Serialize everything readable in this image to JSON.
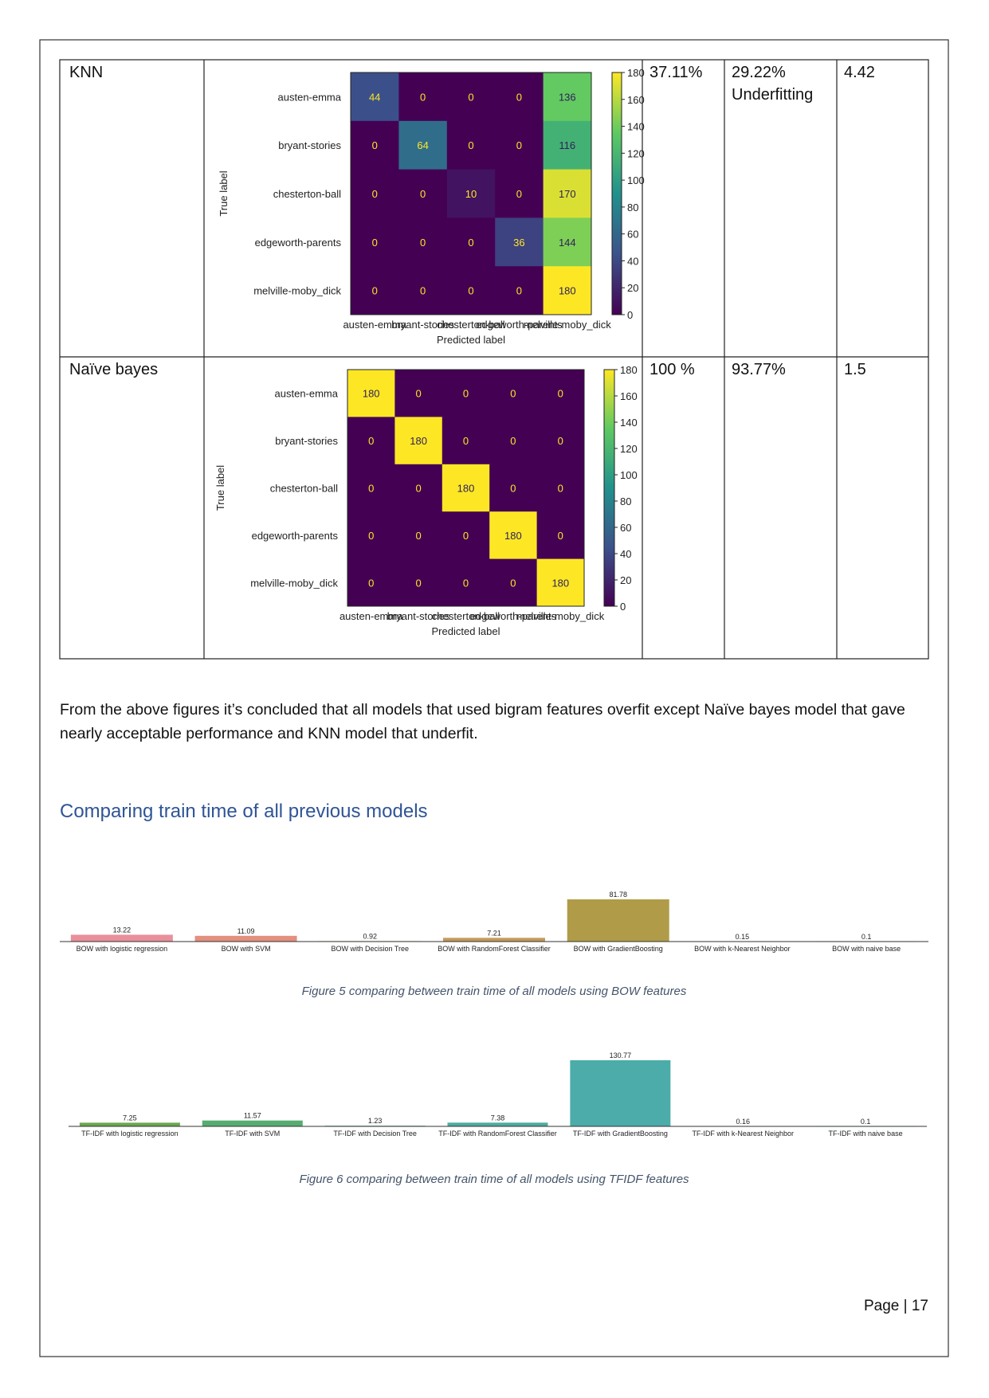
{
  "table": {
    "rows": [
      {
        "model": "KNN",
        "cells": [
          [
            "37.11%"
          ],
          [
            "29.22%",
            "Underfitting"
          ],
          [
            "4.42"
          ]
        ]
      },
      {
        "model": "Naïve bayes",
        "cells": [
          [
            "100 %"
          ],
          [
            "93.77%"
          ],
          [
            "1.5"
          ]
        ]
      }
    ]
  },
  "paragraph": "From the above figures it’s concluded that all models that used bigram features overfit except Naïve bayes model that gave nearly acceptable performance and KNN model that underfit.",
  "heading": "Comparing train time of all previous models",
  "captions": [
    "Figure 5 comparing between train time of all models using BOW features",
    "Figure 6 comparing between train time of all models using TFIDF features"
  ],
  "footer": "Page | 17",
  "chart_data": [
    {
      "type": "heatmap",
      "x_label": "Predicted label",
      "y_label": "True label",
      "categories": [
        "austen-emma",
        "bryant-stories",
        "chesterton-ball",
        "edgeworth-parents",
        "melville-moby_dick"
      ],
      "values": [
        [
          44,
          0,
          0,
          0,
          136
        ],
        [
          0,
          64,
          0,
          0,
          116
        ],
        [
          0,
          0,
          10,
          0,
          170
        ],
        [
          0,
          0,
          0,
          36,
          144
        ],
        [
          0,
          0,
          0,
          0,
          180
        ]
      ],
      "clim": [
        0,
        180
      ],
      "colorbar_ticks": [
        0,
        20,
        40,
        60,
        80,
        100,
        120,
        140,
        160,
        180
      ],
      "colormap": "viridis"
    },
    {
      "type": "heatmap",
      "x_label": "Predicted label",
      "y_label": "True label",
      "categories": [
        "austen-emma",
        "bryant-stories",
        "chesterton-ball",
        "edgeworth-parents",
        "melville-moby_dick"
      ],
      "values": [
        [
          180,
          0,
          0,
          0,
          0
        ],
        [
          0,
          180,
          0,
          0,
          0
        ],
        [
          0,
          0,
          180,
          0,
          0
        ],
        [
          0,
          0,
          0,
          180,
          0
        ],
        [
          0,
          0,
          0,
          0,
          180
        ]
      ],
      "clim": [
        0,
        180
      ],
      "colorbar_ticks": [
        0,
        20,
        40,
        60,
        80,
        100,
        120,
        140,
        160,
        180
      ],
      "colormap": "viridis"
    },
    {
      "type": "bar",
      "categories": [
        "BOW with logistic regression",
        "BOW with SVM",
        "BOW with Decision Tree",
        "BOW with RandomForest Classifier",
        "BOW with GradientBoosting",
        "BOW with k-Nearest Neighbor",
        "BOW with naive base"
      ],
      "values": [
        13.22,
        11.09,
        0.92,
        7.21,
        81.78,
        0.15,
        0.1
      ],
      "colors": [
        "#e98f9c",
        "#e3907f",
        "#d49a6a",
        "#c49a5a",
        "#b09c48",
        "#9ea045",
        "#8fa244"
      ]
    },
    {
      "type": "bar",
      "categories": [
        "TF-IDF with logistic regression",
        "TF-IDF with SVM",
        "TF-IDF with Decision Tree",
        "TF-IDF with RandomForest Classifier",
        "TF-IDF with GradientBoosting",
        "TF-IDF with k-Nearest Neighbor",
        "TF-IDF with naive base"
      ],
      "values": [
        7.25,
        11.57,
        1.23,
        7.38,
        130.77,
        0.16,
        0.1
      ],
      "colors": [
        "#6aa84f",
        "#56ad72",
        "#52ab8c",
        "#4fab9e",
        "#4caca9",
        "#4cabb4",
        "#4fa9bf"
      ]
    }
  ]
}
